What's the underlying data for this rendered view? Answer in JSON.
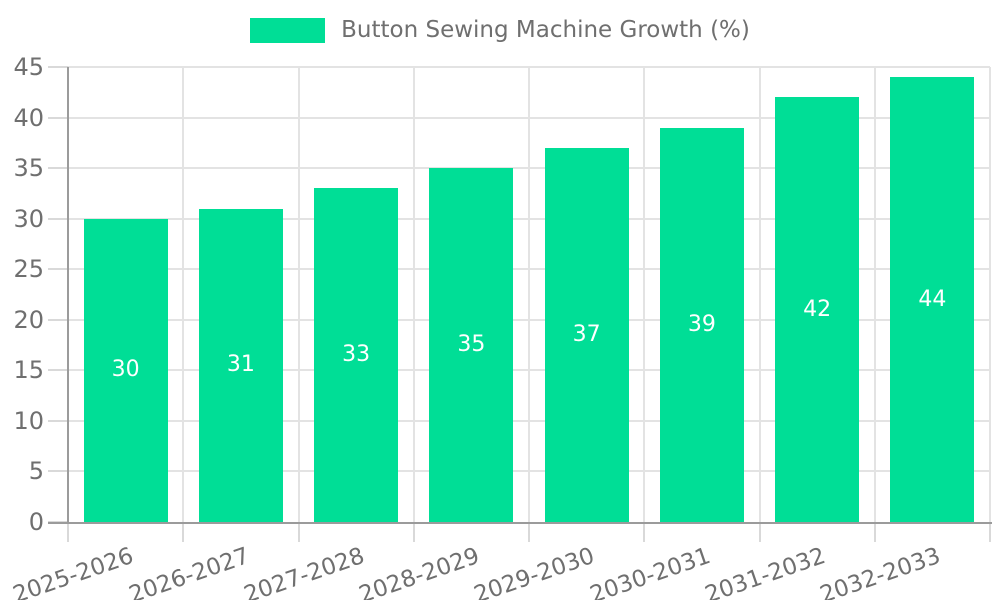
{
  "chart_data": {
    "type": "bar",
    "legend_label": "Button Sewing Machine Growth (%)",
    "legend_position": "top-center",
    "categories": [
      "2025-2026",
      "2026-2027",
      "2027-2028",
      "2028-2029",
      "2029-2030",
      "2030-2031",
      "2031-2032",
      "2032-2033"
    ],
    "values": [
      30,
      31,
      33,
      35,
      37,
      39,
      42,
      44
    ],
    "ylim": [
      0,
      45
    ],
    "yticks": [
      0,
      5,
      10,
      15,
      20,
      25,
      30,
      35,
      40,
      45
    ],
    "grid": true,
    "bar_value_labels_inside": true,
    "x_label_rotation_deg": -19,
    "colors": {
      "bar": "#00DE96",
      "bar_label": "#ffffff",
      "grid": "#e3e3e3",
      "axis": "#9b9b9b",
      "tick": "#d9d9d9",
      "text": "#6f6f6f",
      "background": "#ffffff"
    }
  }
}
